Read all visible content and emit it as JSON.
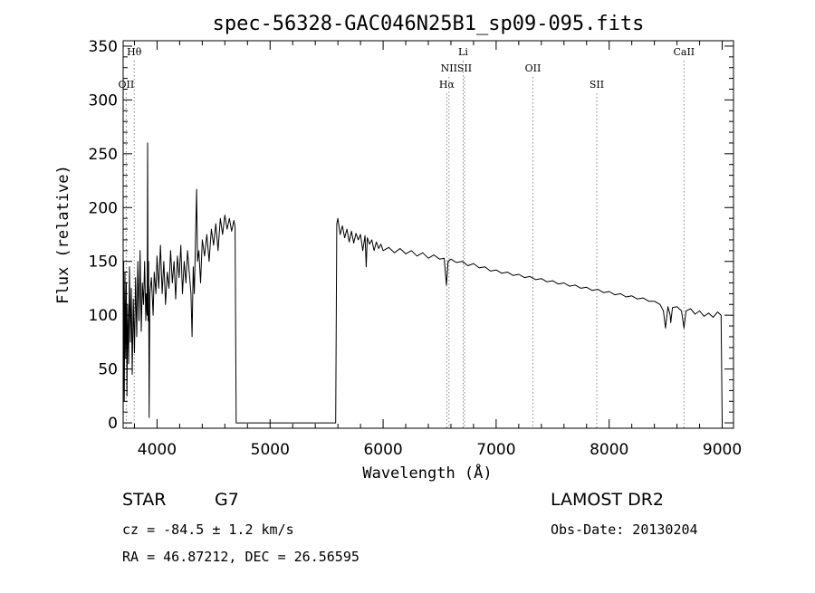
{
  "chart_data": {
    "type": "line",
    "title": "spec-56328-GAC046N25B1_sp09-095.fits",
    "xlabel": "Wavelength (Å)",
    "ylabel": "Flux (relative)",
    "xlim": [
      3700,
      9100
    ],
    "ylim": [
      -5,
      355
    ],
    "xticks": [
      4000,
      5000,
      6000,
      7000,
      8000,
      9000
    ],
    "yticks": [
      0,
      50,
      100,
      150,
      200,
      250,
      300,
      350
    ],
    "grid": false,
    "series": [
      {
        "values": [
          [
            3700,
            0
          ],
          [
            3705,
            150
          ],
          [
            3710,
            20
          ],
          [
            3716,
            140
          ],
          [
            3722,
            60
          ],
          [
            3728,
            130
          ],
          [
            3734,
            25
          ],
          [
            3740,
            110
          ],
          [
            3748,
            55
          ],
          [
            3756,
            145
          ],
          [
            3764,
            75
          ],
          [
            3772,
            125
          ],
          [
            3780,
            45
          ],
          [
            3790,
            115
          ],
          [
            3800,
            65
          ],
          [
            3810,
            135
          ],
          [
            3820,
            80
          ],
          [
            3830,
            150
          ],
          [
            3840,
            95
          ],
          [
            3850,
            160
          ],
          [
            3860,
            85
          ],
          [
            3870,
            130
          ],
          [
            3880,
            110
          ],
          [
            3890,
            150
          ],
          [
            3900,
            95
          ],
          [
            3905,
            120
          ],
          [
            3912,
            100
          ],
          [
            3916,
            260
          ],
          [
            3920,
            95
          ],
          [
            3925,
            150
          ],
          [
            3930,
            5
          ],
          [
            3936,
            120
          ],
          [
            3950,
            135
          ],
          [
            3965,
            100
          ],
          [
            3975,
            140
          ],
          [
            3990,
            120
          ],
          [
            4000,
            155
          ],
          [
            4015,
            125
          ],
          [
            4030,
            165
          ],
          [
            4045,
            120
          ],
          [
            4060,
            150
          ],
          [
            4075,
            110
          ],
          [
            4090,
            140
          ],
          [
            4105,
            125
          ],
          [
            4120,
            160
          ],
          [
            4135,
            130
          ],
          [
            4150,
            150
          ],
          [
            4165,
            115
          ],
          [
            4180,
            155
          ],
          [
            4195,
            135
          ],
          [
            4210,
            165
          ],
          [
            4225,
            120
          ],
          [
            4240,
            150
          ],
          [
            4255,
            130
          ],
          [
            4270,
            160
          ],
          [
            4285,
            140
          ],
          [
            4300,
            120
          ],
          [
            4310,
            80
          ],
          [
            4320,
            145
          ],
          [
            4330,
            120
          ],
          [
            4340,
            170
          ],
          [
            4350,
            217
          ],
          [
            4358,
            150
          ],
          [
            4370,
            160
          ],
          [
            4385,
            130
          ],
          [
            4400,
            170
          ],
          [
            4420,
            155
          ],
          [
            4440,
            175
          ],
          [
            4460,
            150
          ],
          [
            4480,
            180
          ],
          [
            4500,
            165
          ],
          [
            4520,
            185
          ],
          [
            4540,
            160
          ],
          [
            4560,
            190
          ],
          [
            4580,
            175
          ],
          [
            4600,
            193
          ],
          [
            4620,
            180
          ],
          [
            4640,
            190
          ],
          [
            4660,
            178
          ],
          [
            4680,
            188
          ],
          [
            4690,
            182
          ],
          [
            4700,
            0
          ],
          [
            5580,
            0
          ],
          [
            5590,
            185
          ],
          [
            5600,
            190
          ],
          [
            5620,
            175
          ],
          [
            5640,
            183
          ],
          [
            5660,
            172
          ],
          [
            5680,
            180
          ],
          [
            5700,
            168
          ],
          [
            5720,
            178
          ],
          [
            5740,
            167
          ],
          [
            5760,
            176
          ],
          [
            5780,
            170
          ],
          [
            5800,
            175
          ],
          [
            5820,
            160
          ],
          [
            5840,
            174
          ],
          [
            5850,
            145
          ],
          [
            5860,
            172
          ],
          [
            5880,
            166
          ],
          [
            5900,
            170
          ],
          [
            5920,
            160
          ],
          [
            5940,
            168
          ],
          [
            5960,
            162
          ],
          [
            5980,
            166
          ],
          [
            6000,
            160
          ],
          [
            6050,
            163
          ],
          [
            6100,
            158
          ],
          [
            6150,
            162
          ],
          [
            6200,
            157
          ],
          [
            6250,
            160
          ],
          [
            6300,
            155
          ],
          [
            6350,
            158
          ],
          [
            6400,
            153
          ],
          [
            6450,
            156
          ],
          [
            6500,
            152
          ],
          [
            6540,
            153
          ],
          [
            6560,
            128
          ],
          [
            6575,
            150
          ],
          [
            6600,
            152
          ],
          [
            6650,
            149
          ],
          [
            6700,
            150
          ],
          [
            6750,
            146
          ],
          [
            6800,
            148
          ],
          [
            6850,
            144
          ],
          [
            6900,
            145
          ],
          [
            6950,
            141
          ],
          [
            7000,
            142
          ],
          [
            7050,
            139
          ],
          [
            7100,
            140
          ],
          [
            7150,
            137
          ],
          [
            7200,
            138
          ],
          [
            7250,
            135
          ],
          [
            7300,
            136
          ],
          [
            7350,
            133
          ],
          [
            7400,
            134
          ],
          [
            7450,
            131
          ],
          [
            7500,
            132
          ],
          [
            7550,
            129
          ],
          [
            7600,
            130
          ],
          [
            7650,
            127
          ],
          [
            7700,
            128
          ],
          [
            7750,
            125
          ],
          [
            7800,
            126
          ],
          [
            7850,
            123
          ],
          [
            7900,
            124
          ],
          [
            7950,
            121
          ],
          [
            8000,
            122
          ],
          [
            8050,
            119
          ],
          [
            8100,
            120
          ],
          [
            8150,
            117
          ],
          [
            8200,
            118
          ],
          [
            8250,
            115
          ],
          [
            8300,
            116
          ],
          [
            8350,
            113
          ],
          [
            8400,
            113
          ],
          [
            8450,
            110
          ],
          [
            8480,
            104
          ],
          [
            8498,
            88
          ],
          [
            8520,
            108
          ],
          [
            8540,
            100
          ],
          [
            8545,
            93
          ],
          [
            8560,
            107
          ],
          [
            8600,
            108
          ],
          [
            8640,
            104
          ],
          [
            8662,
            88
          ],
          [
            8680,
            104
          ],
          [
            8720,
            106
          ],
          [
            8760,
            101
          ],
          [
            8800,
            104
          ],
          [
            8840,
            99
          ],
          [
            8880,
            102
          ],
          [
            8920,
            98
          ],
          [
            8960,
            103
          ],
          [
            8990,
            100
          ],
          [
            9000,
            0
          ]
        ]
      }
    ],
    "line_markers": [
      {
        "label": "OII",
        "x": 3727,
        "row": 3
      },
      {
        "label": "Hθ",
        "x": 3798,
        "row": 1
      },
      {
        "label": "Hα",
        "x": 6563,
        "row": 3
      },
      {
        "label": "NII",
        "x": 6583,
        "row": 2
      },
      {
        "label": "SII",
        "x": 6720,
        "row": 2
      },
      {
        "label": "Li",
        "x": 6708,
        "row": 1
      },
      {
        "label": "OII",
        "x": 7325,
        "row": 2
      },
      {
        "label": "SII",
        "x": 7890,
        "row": 3
      },
      {
        "label": "CaII",
        "x": 8662,
        "row": 1
      }
    ]
  },
  "info": {
    "class_label": "STAR",
    "subclass": "G7",
    "survey": "LAMOST DR2",
    "cz": "cz = -84.5 ± 1.2 km/s",
    "obs_date": "Obs-Date: 20130204",
    "radec": "RA =  46.87212, DEC =  26.56595"
  }
}
